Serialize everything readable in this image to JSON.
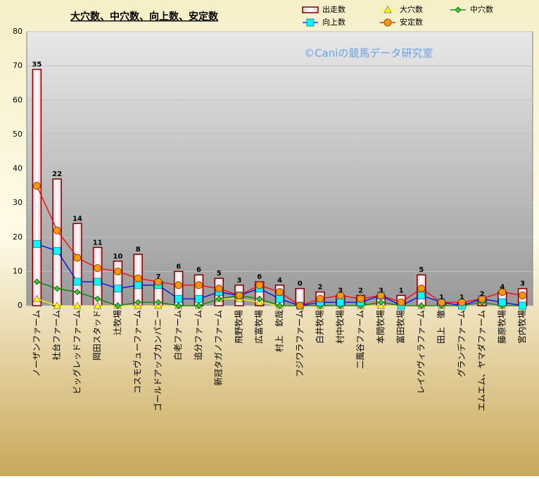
{
  "chart_data": {
    "type": "bar",
    "title": "大穴数、中穴数、向上数、安定数",
    "watermark": "©Caniの競馬データ研究室",
    "categories": [
      "ノーザンファーム",
      "社台ファーム",
      "ビッグレッドファーム",
      "岡田スタッド",
      "辻牧場",
      "コスモヴューファーム",
      "ゴールドアップカンパニー",
      "白老ファーム",
      "追分ファーム",
      "新冠タガノファーム",
      "飛野牧場",
      "広富牧場",
      "村上　欽哉",
      "フジワラファーム",
      "白井牧場",
      "村中牧場",
      "二風谷ファーム",
      "本間牧場",
      "富田牧場",
      "レイクヴィラファーム",
      "田上　徹",
      "グランデファーム",
      "エムエム、ヤマダファーム",
      "藤原牧場",
      "宮内牧場"
    ],
    "series": [
      {
        "name": "出走数",
        "type": "bar",
        "color": "#800000",
        "values": [
          69,
          37,
          24,
          17,
          13,
          15,
          7,
          10,
          9,
          8,
          6,
          7,
          6,
          5,
          4,
          3,
          3,
          3,
          3,
          9,
          1,
          1,
          2,
          4,
          5
        ]
      },
      {
        "name": "大穴数",
        "type": "line",
        "marker": "triangle",
        "color": "#ffff00",
        "values": [
          2,
          0,
          0,
          0,
          0,
          0,
          0,
          0,
          0,
          2,
          2,
          1,
          0,
          0,
          0,
          0,
          0,
          0,
          0,
          0,
          0,
          0,
          1,
          0,
          0
        ]
      },
      {
        "name": "中穴数",
        "type": "line",
        "marker": "diamond",
        "color": "#008000",
        "values": [
          7,
          5,
          4,
          2,
          0,
          1,
          1,
          0,
          0,
          2,
          3,
          2,
          0,
          0,
          0,
          0,
          0,
          1,
          0,
          0,
          0,
          0,
          1,
          0,
          0
        ]
      },
      {
        "name": "向上数",
        "type": "line",
        "marker": "square",
        "color": "#0000ff",
        "values": [
          18,
          16,
          7,
          7,
          5,
          6,
          6,
          2,
          2,
          4,
          3,
          5,
          2,
          0,
          1,
          1,
          1,
          3,
          0,
          3,
          1,
          0,
          2,
          1,
          0
        ]
      },
      {
        "name": "安定数",
        "type": "line",
        "marker": "circle",
        "color": "#ff0000",
        "labels": true,
        "values": [
          35,
          22,
          14,
          11,
          10,
          8,
          7,
          6,
          6,
          5,
          3,
          6,
          4,
          0,
          2,
          3,
          2,
          3,
          1,
          5,
          1,
          1,
          2,
          4,
          3
        ]
      }
    ],
    "ylim": [
      0,
      80
    ],
    "yticks": [
      0,
      10,
      20,
      30,
      40,
      50,
      60,
      70,
      80
    ],
    "grid": true
  }
}
